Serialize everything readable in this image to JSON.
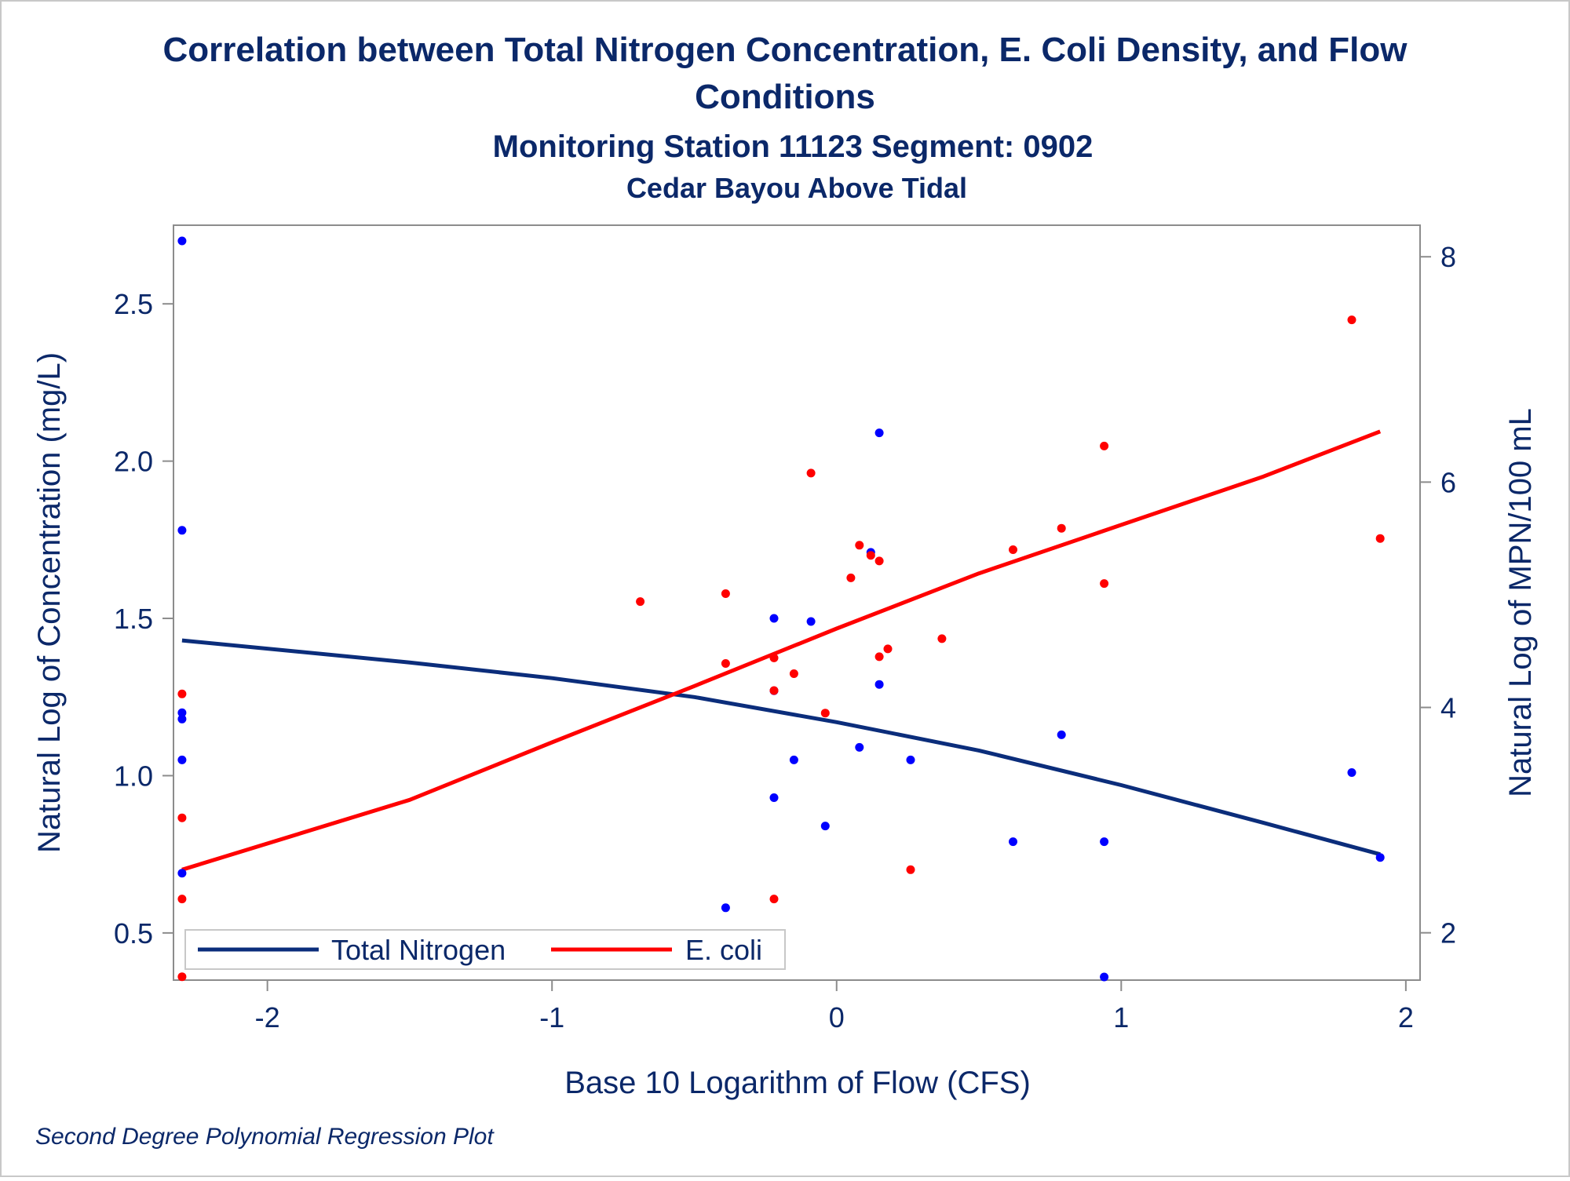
{
  "chart_data": {
    "type": "scatter",
    "title": "Correlation between Total Nitrogen Concentration, E. Coli Density, and Flow Conditions",
    "title_line1": "Correlation between Total Nitrogen Concentration, E. Coli Density, and Flow",
    "title_line2": "Conditions",
    "subtitle": "Monitoring Station 11123 Segment: 0902",
    "subtitle2": "Cedar Bayou Above Tidal",
    "xlabel": "Base 10 Logarithm of Flow (CFS)",
    "ylabel": "Natural Log of Concentration (mg/L)",
    "y2label": "Natural Log of MPN/100 mL",
    "footnote": "Second Degree Polynomial Regression Plot",
    "xlim": [
      -2.33,
      2.05
    ],
    "ylim": [
      0.35,
      2.75
    ],
    "y2lim": [
      1.58,
      8.28
    ],
    "xticks": [
      -2,
      -1,
      0,
      1,
      2
    ],
    "xtick_labels": [
      "-2",
      "-1",
      "0",
      "1",
      "2"
    ],
    "yticks": [
      0.5,
      1.0,
      1.5,
      2.0,
      2.5
    ],
    "ytick_labels": [
      "0.5",
      "1.0",
      "1.5",
      "2.0",
      "2.5"
    ],
    "y2ticks": [
      2,
      4,
      6,
      8
    ],
    "y2tick_labels": [
      "2",
      "4",
      "6",
      "8"
    ],
    "grid": false,
    "legend_position": "bottom-left",
    "series": [
      {
        "name": "Total Nitrogen",
        "axis": "left",
        "color": "#0b2d7b",
        "marker_color": "#0000ff",
        "points": [
          [
            -2.3,
            2.7
          ],
          [
            -2.3,
            1.78
          ],
          [
            -2.3,
            1.2
          ],
          [
            -2.3,
            1.18
          ],
          [
            -2.3,
            1.05
          ],
          [
            -2.3,
            0.69
          ],
          [
            -0.39,
            0.58
          ],
          [
            -0.22,
            1.5
          ],
          [
            -0.22,
            1.27
          ],
          [
            -0.22,
            0.93
          ],
          [
            -0.15,
            1.05
          ],
          [
            -0.09,
            1.49
          ],
          [
            -0.04,
            0.84
          ],
          [
            0.08,
            1.09
          ],
          [
            0.12,
            1.71
          ],
          [
            0.15,
            2.09
          ],
          [
            0.15,
            1.29
          ],
          [
            0.26,
            1.05
          ],
          [
            0.62,
            0.79
          ],
          [
            0.79,
            1.13
          ],
          [
            0.94,
            0.79
          ],
          [
            0.94,
            0.36
          ],
          [
            1.81,
            1.01
          ],
          [
            1.91,
            0.74
          ]
        ],
        "fit": [
          [
            -2.3,
            1.43
          ],
          [
            -1.5,
            1.36
          ],
          [
            -1.0,
            1.31
          ],
          [
            -0.5,
            1.25
          ],
          [
            0.0,
            1.17
          ],
          [
            0.5,
            1.08
          ],
          [
            1.0,
            0.97
          ],
          [
            1.5,
            0.85
          ],
          [
            1.91,
            0.75
          ]
        ]
      },
      {
        "name": "E. coli",
        "axis": "right",
        "color": "#ff0000",
        "marker_color": "#ff0000",
        "points": [
          [
            -2.3,
            4.12
          ],
          [
            -2.3,
            3.02
          ],
          [
            -2.3,
            2.3
          ],
          [
            -2.3,
            1.61
          ],
          [
            -0.69,
            4.94
          ],
          [
            -0.39,
            5.01
          ],
          [
            -0.39,
            4.39
          ],
          [
            -0.22,
            4.44
          ],
          [
            -0.22,
            4.15
          ],
          [
            -0.22,
            2.3
          ],
          [
            -0.15,
            4.3
          ],
          [
            -0.09,
            6.08
          ],
          [
            -0.04,
            3.95
          ],
          [
            0.05,
            5.15
          ],
          [
            0.08,
            5.44
          ],
          [
            0.12,
            5.35
          ],
          [
            0.15,
            5.3
          ],
          [
            0.15,
            4.45
          ],
          [
            0.18,
            4.52
          ],
          [
            0.26,
            2.56
          ],
          [
            0.37,
            4.61
          ],
          [
            0.62,
            5.4
          ],
          [
            0.79,
            5.59
          ],
          [
            0.94,
            5.1
          ],
          [
            0.94,
            6.32
          ],
          [
            1.81,
            7.44
          ],
          [
            1.91,
            5.5
          ]
        ],
        "fit": [
          [
            -2.3,
            2.56
          ],
          [
            -1.5,
            3.18
          ],
          [
            -1.0,
            3.69
          ],
          [
            -0.5,
            4.19
          ],
          [
            0.0,
            4.7
          ],
          [
            0.5,
            5.19
          ],
          [
            1.0,
            5.62
          ],
          [
            1.5,
            6.05
          ],
          [
            1.91,
            6.45
          ]
        ]
      }
    ]
  }
}
